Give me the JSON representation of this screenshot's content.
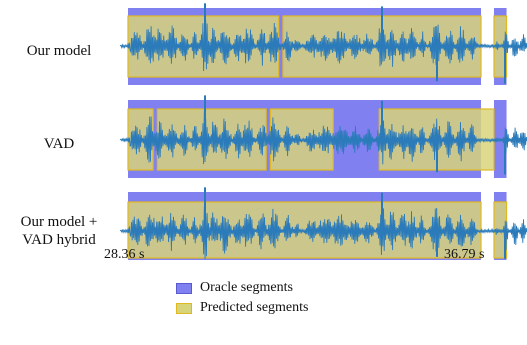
{
  "chart_data": {
    "type": "waveform-segments",
    "x_range": [
      28.36,
      36.79
    ],
    "x_unit": "s",
    "tick_labels": [
      "28.36 s",
      "36.79 s"
    ],
    "colors": {
      "oracle_fill": "#8080f0",
      "predicted_fill": "#d8d47a",
      "predicted_edge": "#e0b820",
      "waveform": "#2b7bba"
    },
    "legend": [
      {
        "name": "Oracle segments",
        "color": "#8080f0"
      },
      {
        "name": "Predicted segments",
        "color": "#d8d47a"
      }
    ],
    "rows": [
      {
        "label": "Our model",
        "oracle": [
          [
            28.36,
            36.79
          ],
          [
            37.1,
            37.4
          ]
        ],
        "predicted": [
          [
            28.36,
            31.96
          ],
          [
            32.06,
            36.79
          ],
          [
            37.1,
            37.4
          ]
        ]
      },
      {
        "label": "VAD",
        "oracle": [
          [
            28.36,
            36.79
          ],
          [
            37.1,
            37.4
          ]
        ],
        "predicted": [
          [
            28.36,
            28.96
          ],
          [
            29.06,
            31.66
          ],
          [
            31.76,
            33.26
          ],
          [
            34.36,
            37.1
          ]
        ]
      },
      {
        "label": "Our model + VAD hybrid",
        "label_lines": [
          "Our model +",
          "VAD hybrid"
        ],
        "oracle": [
          [
            28.36,
            36.79
          ],
          [
            37.1,
            37.4
          ]
        ],
        "predicted": [
          [
            28.36,
            36.79
          ],
          [
            37.1,
            37.4
          ]
        ]
      }
    ]
  }
}
